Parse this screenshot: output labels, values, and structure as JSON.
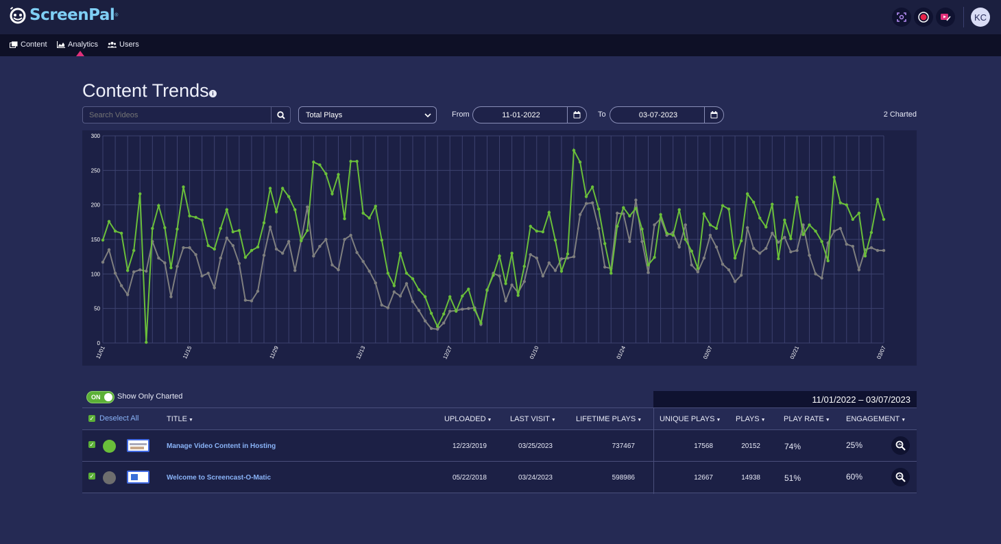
{
  "app": {
    "logo_text": "ScreenPal",
    "logo_mark": "®",
    "avatar_initials": "KC",
    "icons": [
      "screenshot-icon",
      "record-icon",
      "video-editor-icon"
    ]
  },
  "nav": {
    "items": [
      {
        "label": "Content",
        "icon": "content-icon"
      },
      {
        "label": "Analytics",
        "icon": "analytics-icon"
      },
      {
        "label": "Users",
        "icon": "users-icon"
      }
    ],
    "active": "Analytics"
  },
  "page": {
    "title": "Content Trends",
    "info_icon": "i"
  },
  "filters": {
    "search_placeholder": "Search Videos",
    "metric": "Total Plays",
    "from_label": "From",
    "from_date": "11-01-2022",
    "to_label": "To",
    "to_date": "03-07-2023",
    "charted_count": "2 Charted"
  },
  "colors": {
    "series1": "#6abf3a",
    "series2": "#7f7f7f",
    "accent": "#e0307a",
    "link": "#8ab4f8"
  },
  "chart_data": {
    "type": "line",
    "ylim": [
      0,
      300
    ],
    "yticks": [
      "300",
      "250",
      "200",
      "150",
      "100",
      "50",
      "0"
    ],
    "x_tick_labels": [
      "11/01",
      "11/15",
      "11/29",
      "12/13",
      "12/27",
      "01/10",
      "01/24",
      "02/07",
      "02/21",
      "03/07"
    ],
    "x_start": "11/01",
    "x_end": "03/07",
    "grid": true,
    "series": [
      {
        "color": "#6abf3a",
        "values": [
          149,
          176,
          162,
          159,
          105,
          134,
          216,
          1,
          166,
          199,
          167,
          109,
          165,
          226,
          184,
          182,
          178,
          141,
          136,
          166,
          193,
          161,
          163,
          124,
          134,
          139,
          174,
          224,
          190,
          224,
          212,
          193,
          148,
          163,
          262,
          258,
          245,
          216,
          244,
          180,
          263,
          263,
          188,
          181,
          198,
          149,
          101,
          83,
          130,
          101,
          93,
          77,
          67,
          43,
          24,
          42,
          67,
          46,
          68,
          78,
          48,
          29,
          77,
          98,
          126,
          86,
          130,
          69,
          111,
          169,
          162,
          161,
          189,
          149,
          104,
          129,
          279,
          262,
          212,
          226,
          194,
          144,
          101,
          169,
          196,
          184,
          195,
          165,
          113,
          124,
          186,
          159,
          156,
          193,
          150,
          133,
          108,
          187,
          171,
          166,
          199,
          194,
          123,
          148,
          216,
          204,
          181,
          168,
          201,
          122,
          178,
          151,
          211,
          157,
          171,
          162,
          147,
          119,
          240,
          203,
          200,
          179,
          188,
          126,
          160,
          208,
          179
        ]
      },
      {
        "color": "#7f7f7f",
        "values": [
          117,
          135,
          101,
          83,
          70,
          103,
          106,
          104,
          147,
          123,
          116,
          67,
          111,
          138,
          138,
          128,
          97,
          101,
          80,
          123,
          152,
          141,
          115,
          62,
          61,
          75,
          127,
          168,
          136,
          130,
          147,
          105,
          149,
          197,
          126,
          140,
          150,
          113,
          106,
          150,
          156,
          131,
          118,
          104,
          87,
          55,
          51,
          74,
          68,
          86,
          60,
          47,
          32,
          21,
          20,
          29,
          46,
          47,
          49,
          50,
          51,
          27,
          76,
          101,
          97,
          61,
          84,
          73,
          89,
          128,
          123,
          97,
          116,
          105,
          122,
          123,
          125,
          186,
          202,
          203,
          166,
          110,
          108,
          188,
          187,
          147,
          207,
          147,
          102,
          171,
          180,
          156,
          160,
          139,
          171,
          113,
          103,
          123,
          156,
          139,
          114,
          106,
          89,
          98,
          167,
          137,
          130,
          137,
          159,
          146,
          153,
          132,
          134,
          171,
          127,
          100,
          94,
          145,
          162,
          166,
          143,
          140,
          106,
          135,
          138,
          134,
          134
        ]
      }
    ]
  },
  "table": {
    "show_only_charted_toggle": "ON",
    "show_only_charted_label": "Show Only Charted",
    "date_range": "11/01/2022 – 03/07/2023",
    "deselect_all": "Deselect All",
    "headers": {
      "title": "TITLE",
      "uploaded": "UPLOADED",
      "last_visit": "LAST VISIT",
      "lifetime_plays": "LIFETIME PLAYS",
      "unique_plays": "UNIQUE PLAYS",
      "plays": "PLAYS",
      "play_rate": "PLAY RATE",
      "engagement": "ENGAGEMENT"
    },
    "rows": [
      {
        "color": "#6abf3a",
        "title": "Manage Video Content in Hosting",
        "uploaded": "12/23/2019",
        "last_visit": "03/25/2023",
        "lifetime_plays": "737467",
        "unique_plays": "17568",
        "plays": "20152",
        "play_rate": "74%",
        "engagement": "25%"
      },
      {
        "color": "#6e6e6e",
        "title": "Welcome to Screencast-O-Matic",
        "uploaded": "05/22/2018",
        "last_visit": "03/24/2023",
        "lifetime_plays": "598986",
        "unique_plays": "12667",
        "plays": "14938",
        "play_rate": "51%",
        "engagement": "60%"
      }
    ]
  }
}
